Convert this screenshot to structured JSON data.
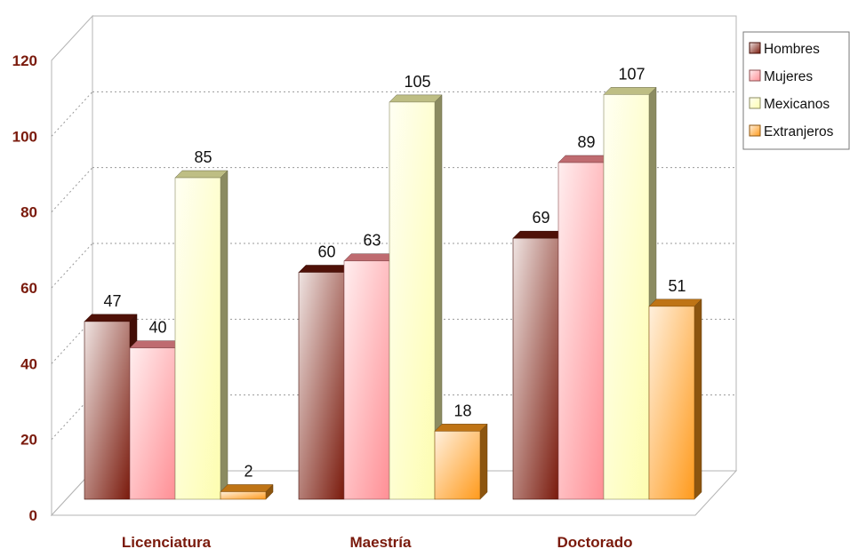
{
  "chart_data": {
    "type": "bar",
    "title": "",
    "xlabel": "",
    "ylabel": "",
    "ylim": [
      0,
      120
    ],
    "yticks": [
      0,
      20,
      40,
      60,
      80,
      100,
      120
    ],
    "grid": true,
    "legend_position": "top-right",
    "categories": [
      "Licenciatura",
      "Maestría",
      "Doctorado"
    ],
    "series": [
      {
        "name": "Hombres",
        "values": [
          47,
          60,
          69
        ],
        "color": "#7a1a0c"
      },
      {
        "name": "Mujeres",
        "values": [
          40,
          63,
          89
        ],
        "color": "#ff8f95"
      },
      {
        "name": "Mexicanos",
        "values": [
          85,
          105,
          107
        ],
        "color": "#fdfdb0"
      },
      {
        "name": "Extranjeros",
        "values": [
          2,
          18,
          51
        ],
        "color": "#ff9a1c"
      }
    ]
  }
}
